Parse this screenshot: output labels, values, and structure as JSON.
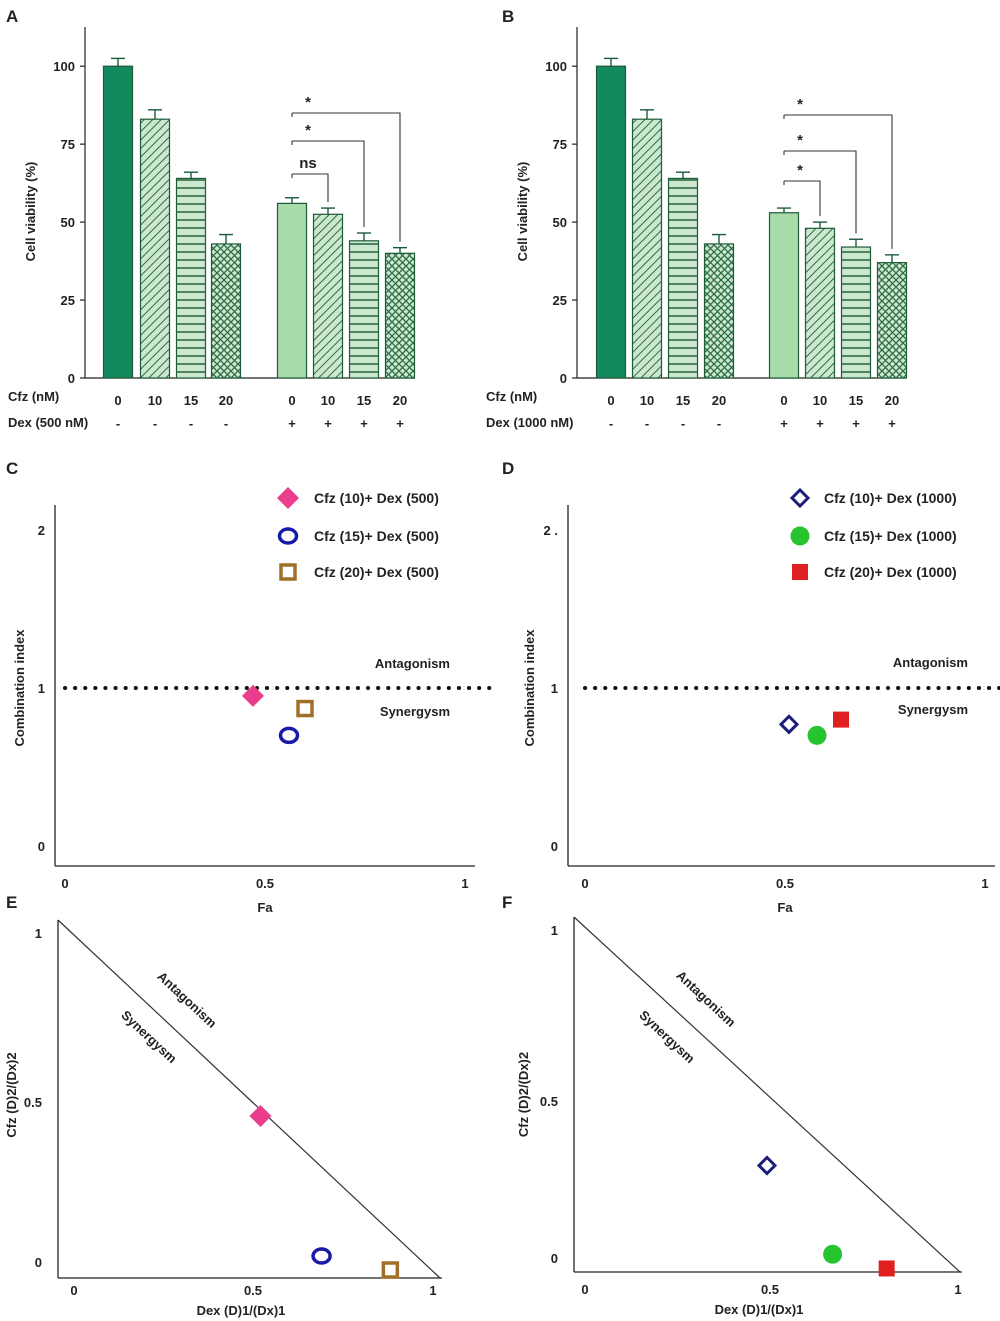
{
  "colors": {
    "dark_green": "#138a5e",
    "light_green": "#a8dcaa",
    "hatch_bg": "#cbe8cf",
    "hatch_line": "#2e6b45",
    "magenta": "#e83e8c",
    "blue": "#1a1aa8",
    "brown": "#a07028",
    "navy": "#1c1c7a",
    "green_dot": "#26c42e",
    "red": "#e02020"
  },
  "chart_data": [
    {
      "panel": "A",
      "type": "bar",
      "ylabel": "Cell viability (%)",
      "yticks": [
        "0",
        "25",
        "50",
        "75",
        "100"
      ],
      "ylim": [
        0,
        110
      ],
      "row1_label": "Cfz (nM)",
      "row2_label": "Dex (500 nM)",
      "categories": [
        "0",
        "10",
        "15",
        "20",
        "0",
        "10",
        "15",
        "20"
      ],
      "dex": [
        "-",
        "-",
        "-",
        "-",
        "+",
        "+",
        "+",
        "+"
      ],
      "values": [
        100,
        83,
        64,
        43,
        56,
        52.5,
        44,
        40
      ],
      "errors": [
        2.5,
        3,
        2,
        3,
        1.8,
        2,
        2.5,
        1.8
      ],
      "patterns": [
        "solid-dark",
        "diag",
        "horiz",
        "cross",
        "solid-light",
        "diag",
        "horiz",
        "cross"
      ],
      "significance": [
        {
          "label": "ns",
          "from": 4,
          "to": 5
        },
        {
          "label": "*",
          "from": 4,
          "to": 6
        },
        {
          "label": "*",
          "from": 4,
          "to": 7
        }
      ]
    },
    {
      "panel": "B",
      "type": "bar",
      "ylabel": "Cell viability (%)",
      "yticks": [
        "0",
        "25",
        "50",
        "75",
        "100"
      ],
      "ylim": [
        0,
        110
      ],
      "row1_label": "Cfz (nM)",
      "row2_label": "Dex (1000 nM)",
      "categories": [
        "0",
        "10",
        "15",
        "20",
        "0",
        "10",
        "15",
        "20"
      ],
      "dex": [
        "-",
        "-",
        "-",
        "-",
        "+",
        "+",
        "+",
        "+"
      ],
      "values": [
        100,
        83,
        64,
        43,
        53,
        48,
        42,
        37
      ],
      "errors": [
        2.5,
        3,
        2,
        3,
        1.5,
        2,
        2.5,
        2.5
      ],
      "patterns": [
        "solid-dark",
        "diag",
        "horiz",
        "cross",
        "solid-light",
        "diag",
        "horiz",
        "cross"
      ],
      "significance": [
        {
          "label": "*",
          "from": 4,
          "to": 5
        },
        {
          "label": "*",
          "from": 4,
          "to": 6
        },
        {
          "label": "*",
          "from": 4,
          "to": 7
        }
      ]
    },
    {
      "panel": "C",
      "type": "scatter",
      "xlabel": "Fa",
      "ylabel": "Combination index",
      "xticks": [
        "0",
        "0.5",
        "1"
      ],
      "yticks": [
        "0",
        "1",
        "2"
      ],
      "xlim": [
        0,
        1
      ],
      "ylim": [
        0,
        2
      ],
      "reference_line": 1,
      "zone_labels": [
        "Antagonism",
        "Synergysm"
      ],
      "series": [
        {
          "name": "Cfz (10)+ Dex (500)",
          "marker": "diamond-filled",
          "color": "magenta",
          "x": 0.47,
          "y": 0.95
        },
        {
          "name": "Cfz (15)+ Dex (500)",
          "marker": "circle-open",
          "color": "blue",
          "x": 0.56,
          "y": 0.7
        },
        {
          "name": "Cfz (20)+ Dex (500)",
          "marker": "square-open",
          "color": "brown",
          "x": 0.6,
          "y": 0.87
        }
      ]
    },
    {
      "panel": "D",
      "type": "scatter",
      "xlabel": "Fa",
      "ylabel": "Combination index",
      "xticks": [
        "0",
        "0.5",
        "1"
      ],
      "yticks": [
        "0",
        "1",
        "2 ."
      ],
      "xlim": [
        0,
        1
      ],
      "ylim": [
        0,
        2
      ],
      "reference_line": 1,
      "zone_labels": [
        "Antagonism",
        "Synergysm"
      ],
      "series": [
        {
          "name": "Cfz (10)+ Dex (1000)",
          "marker": "diamond-open",
          "color": "navy",
          "x": 0.51,
          "y": 0.77
        },
        {
          "name": "Cfz (15)+ Dex (1000)",
          "marker": "circle-filled",
          "color": "green_dot",
          "x": 0.58,
          "y": 0.7
        },
        {
          "name": "Cfz (20)+ Dex (1000)",
          "marker": "square-filled",
          "color": "red",
          "x": 0.64,
          "y": 0.8
        }
      ]
    },
    {
      "panel": "E",
      "type": "scatter",
      "subtype": "isobologram",
      "xlabel": "Dex (D)1/(Dx)1",
      "ylabel": "Cfz (D)2/(Dx)2",
      "xticks": [
        "0",
        "0.5",
        "1"
      ],
      "yticks": [
        "0",
        "0.5",
        "1"
      ],
      "xlim": [
        0,
        1
      ],
      "ylim": [
        0,
        1
      ],
      "zone_labels": [
        "Antagonism",
        "Synergysm"
      ],
      "series": [
        {
          "marker": "diamond-filled",
          "color": "magenta",
          "x": 0.53,
          "y": 0.44
        },
        {
          "marker": "circle-open",
          "color": "blue",
          "x": 0.69,
          "y": 0.04
        },
        {
          "marker": "square-open",
          "color": "brown",
          "x": 0.87,
          "y": 0.0
        }
      ]
    },
    {
      "panel": "F",
      "type": "scatter",
      "subtype": "isobologram",
      "xlabel": "Dex (D)1/(Dx)1",
      "ylabel": "Cfz (D)2/(Dx)2",
      "xticks": [
        "0",
        "0.5",
        "1"
      ],
      "yticks": [
        "0",
        "0.5",
        "1"
      ],
      "xlim": [
        0,
        1
      ],
      "ylim": [
        0,
        1
      ],
      "zone_labels": [
        "Antagonism",
        "Synergysm"
      ],
      "series": [
        {
          "marker": "diamond-open",
          "color": "navy",
          "x": 0.5,
          "y": 0.3
        },
        {
          "marker": "circle-filled",
          "color": "green_dot",
          "x": 0.67,
          "y": 0.05
        },
        {
          "marker": "square-filled",
          "color": "red",
          "x": 0.81,
          "y": 0.01
        }
      ]
    }
  ]
}
